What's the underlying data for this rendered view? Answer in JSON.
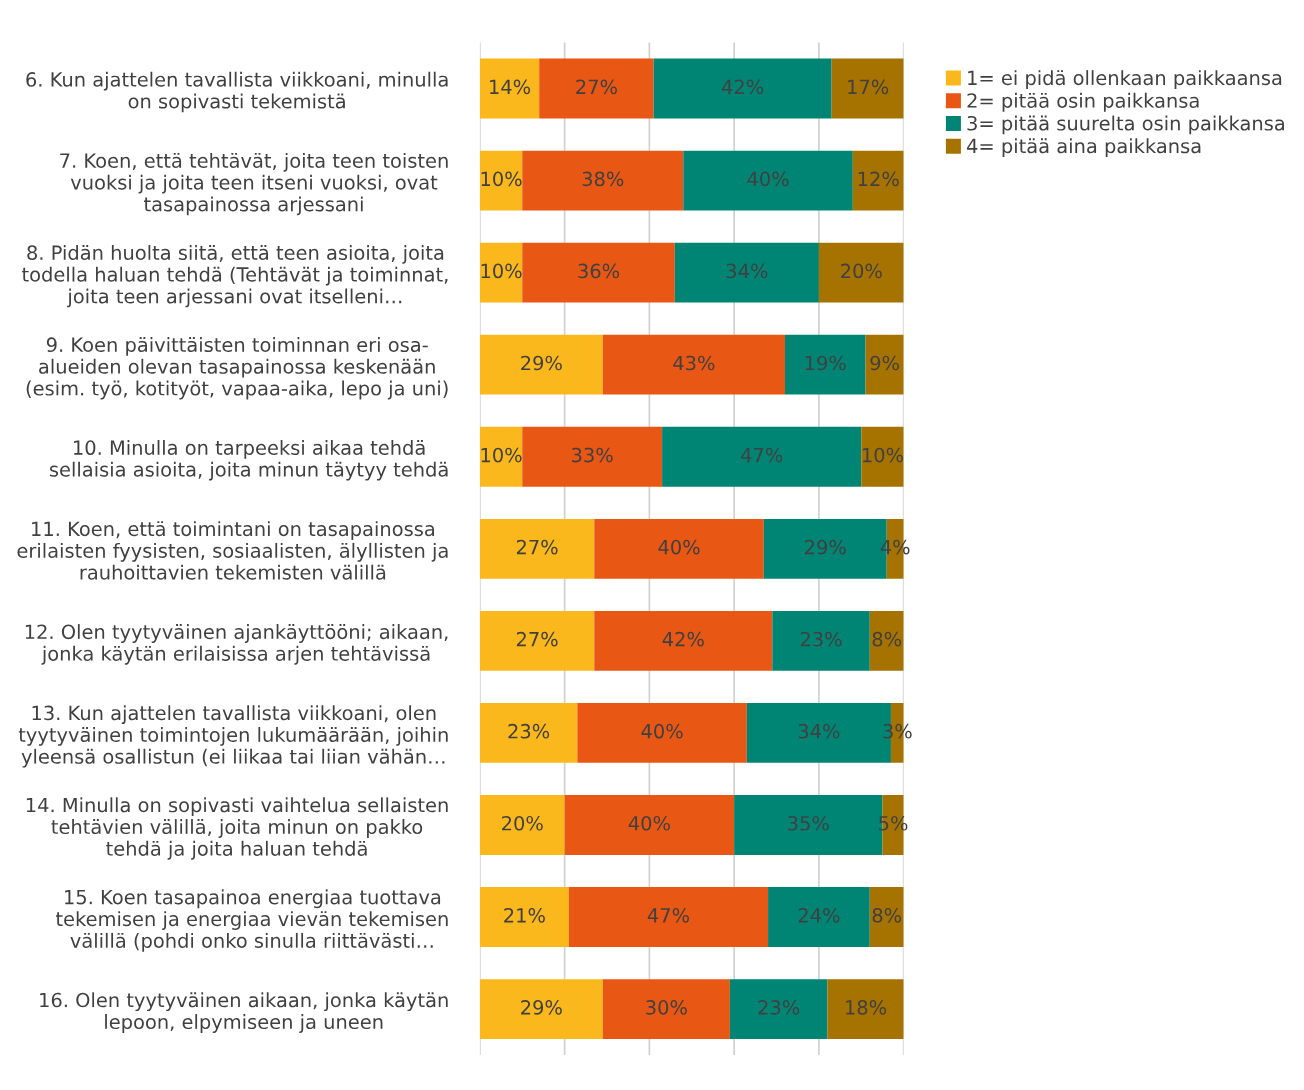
{
  "chart_data": {
    "type": "bar",
    "orientation": "horizontal",
    "stacked": true,
    "grid": "x",
    "legend": "top right",
    "tick_labels": false,
    "categories": [
      "6. Kun ajattelen tavallista viikkoani, minulla\non sopivasti tekemistä",
      "7. Koen, että tehtävät, joita teen toisten\nvuoksi ja joita teen itseni vuoksi, ovat\ntasapainossa arjessani",
      "8. Pidän huolta siitä, että teen asioita, joita\ntodella haluan tehdä (Tehtävät ja toiminnat,\njoita teen arjessani ovat itselleni…",
      "9. Koen päivittäisten toiminnan eri osa-\nalueiden olevan tasapainossa keskenään\n(esim. työ, kotityöt, vapaa-aika, lepo ja uni)",
      "10. Minulla on tarpeeksi aikaa tehdä\nsellaisia asioita, joita minun täytyy tehdä",
      "11. Koen, että toimintani on tasapainossa\nerilaisten fyysisten, sosiaalisten, älyllisten ja\nrauhoittavien tekemisten välillä",
      "12. Olen tyytyväinen ajankäyttööni; aikaan,\njonka käytän erilaisissa arjen tehtävissä",
      "13. Kun ajattelen tavallista viikkoani, olen\ntyytyväinen toimintojen lukumäärään, joihin\nyleensä osallistun (ei liikaa tai liian vähän…",
      "14. Minulla on sopivasti vaihtelua sellaisten\ntehtävien välillä, joita minun on pakko\ntehdä ja joita haluan tehdä",
      "15. Koen tasapainoa energiaa tuottava\ntekemisen ja energiaa vievän tekemisen\nvälillä (pohdi onko sinulla riittävästi…",
      "16. Olen tyytyväinen aikaan, jonka käytän\nlepoon, elpymiseen ja uneen"
    ],
    "series": [
      {
        "name": "1= ei pidä ollenkaan paikkaansa",
        "color": "#fbb81c",
        "values": [
          14,
          10,
          10,
          29,
          10,
          27,
          27,
          23,
          20,
          21,
          29
        ],
        "value_labels": [
          "14%",
          "10%",
          "10%",
          "29%",
          "10%",
          "27%",
          "27%",
          "23%",
          "20%",
          "21%",
          "29%"
        ]
      },
      {
        "name": "2= pitää osin paikkansa",
        "color": "#e85714",
        "values": [
          27,
          38,
          36,
          43,
          33,
          40,
          42,
          40,
          40,
          47,
          30
        ],
        "value_labels": [
          "27%",
          "38%",
          "36%",
          "43%",
          "33%",
          "40%",
          "42%",
          "40%",
          "40%",
          "47%",
          "30%"
        ]
      },
      {
        "name": "3= pitää suurelta osin paikkansa",
        "color": "#008575",
        "values": [
          42,
          40,
          34,
          19,
          47,
          29,
          23,
          34,
          35,
          24,
          23
        ],
        "value_labels": [
          "42%",
          "40%",
          "34%",
          "19%",
          "47%",
          "29%",
          "23%",
          "34%",
          "35%",
          "24%",
          "23%"
        ]
      },
      {
        "name": "4= pitää aina paikkansa",
        "color": "#a67300",
        "values": [
          17,
          12,
          20,
          9,
          10,
          4,
          8,
          3,
          5,
          8,
          18
        ],
        "value_labels": [
          "17%",
          "12%",
          "20%",
          "9%",
          "10%",
          "4%",
          "8%",
          "3%",
          "5%",
          "8%",
          "18%"
        ]
      }
    ]
  }
}
